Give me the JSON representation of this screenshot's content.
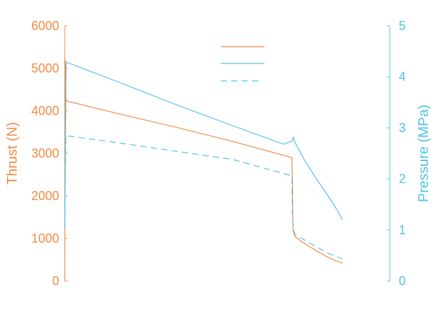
{
  "chart_data": {
    "type": "line",
    "xlabel": "",
    "y_left": {
      "label": "Thrust (N)",
      "ylim": [
        0,
        6000
      ],
      "ticks": [
        "0",
        "1000",
        "2000",
        "3000",
        "4000",
        "5000",
        "6000"
      ],
      "color": "#F28B44"
    },
    "y_right": {
      "label": "Pressure (MPa)",
      "ylim": [
        0,
        5
      ],
      "ticks": [
        "0",
        "1",
        "2",
        "3",
        "4",
        "5"
      ],
      "color": "#4FC3E8"
    },
    "xlim": [
      0,
      1
    ],
    "legend": {
      "placement": "top-center",
      "entries_visible_text": false
    },
    "grid": false,
    "series": [
      {
        "axis": "left",
        "style": "solid",
        "color": "#F28B44",
        "points": [
          [
            0,
            0
          ],
          [
            0.002,
            5200
          ],
          [
            0.004,
            4300
          ],
          [
            0.008,
            4230
          ],
          [
            0.2,
            3920
          ],
          [
            0.4,
            3610
          ],
          [
            0.6,
            3280
          ],
          [
            0.76,
            2990
          ],
          [
            0.81,
            2900
          ],
          [
            0.812,
            2300
          ],
          [
            0.814,
            1200
          ],
          [
            0.82,
            1050
          ],
          [
            0.85,
            900
          ],
          [
            0.9,
            700
          ],
          [
            0.95,
            520
          ],
          [
            0.99,
            420
          ]
        ]
      },
      {
        "axis": "right",
        "style": "solid",
        "color": "#4FC3E8",
        "points": [
          [
            0,
            1.05
          ],
          [
            0.003,
            2.9
          ],
          [
            0.005,
            4.29
          ],
          [
            0.2,
            3.88
          ],
          [
            0.4,
            3.45
          ],
          [
            0.6,
            3.04
          ],
          [
            0.78,
            2.68
          ],
          [
            0.81,
            2.74
          ],
          [
            0.815,
            2.82
          ],
          [
            0.82,
            2.72
          ],
          [
            0.86,
            2.32
          ],
          [
            0.9,
            1.98
          ],
          [
            0.94,
            1.66
          ],
          [
            0.97,
            1.4
          ],
          [
            0.99,
            1.2
          ]
        ]
      },
      {
        "axis": "right",
        "style": "dashed",
        "color": "#4FC3E8",
        "points": [
          [
            0,
            1.05
          ],
          [
            0.002,
            2.0
          ],
          [
            0.004,
            2.85
          ],
          [
            0.2,
            2.7
          ],
          [
            0.4,
            2.54
          ],
          [
            0.6,
            2.38
          ],
          [
            0.81,
            2.06
          ],
          [
            0.812,
            1.2
          ],
          [
            0.82,
            0.92
          ],
          [
            0.88,
            0.72
          ],
          [
            0.94,
            0.54
          ],
          [
            0.99,
            0.43
          ]
        ]
      }
    ]
  }
}
